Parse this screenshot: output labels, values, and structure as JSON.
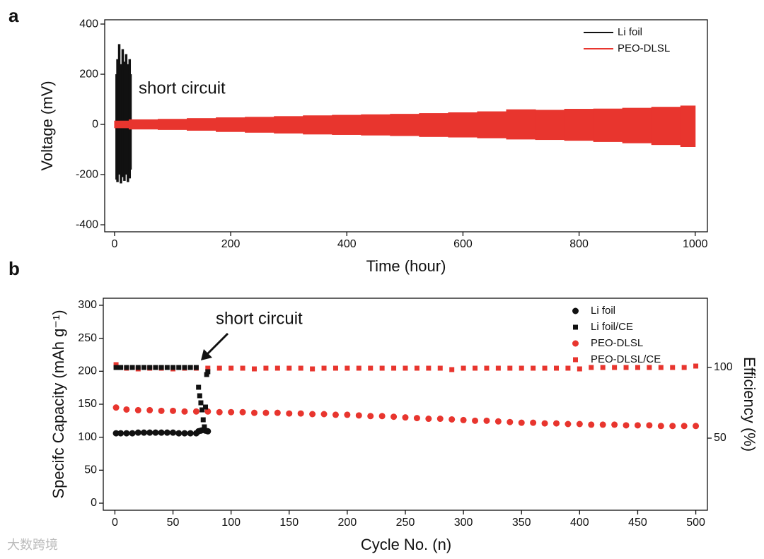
{
  "watermark": "大数跨境",
  "chart_data": [
    {
      "type": "area",
      "panel_label": "a",
      "xlabel": "Time (hour)",
      "ylabel": "Voltage (mV)",
      "annotation": "short circuit",
      "xlim": [
        -17,
        1021
      ],
      "ylim": [
        -428,
        417
      ],
      "xticks": [
        0,
        200,
        400,
        600,
        800,
        1000
      ],
      "yticks": [
        -400,
        -200,
        0,
        200,
        400
      ],
      "legend": "upper right",
      "series": [
        {
          "name": "Li foil",
          "color": "#111111",
          "x": [
            2,
            5,
            8,
            11,
            14,
            17,
            20,
            23,
            26,
            29
          ],
          "values": [
            200,
            260,
            320,
            240,
            300,
            250,
            280,
            240,
            260,
            200
          ],
          "lower": [
            -220,
            -230,
            -200,
            -235,
            -210,
            -225,
            -200,
            -230,
            -215,
            -180
          ]
        },
        {
          "name": "PEO-DLSL",
          "color": "#e8352e",
          "x": [
            0,
            50,
            100,
            150,
            200,
            250,
            300,
            350,
            400,
            450,
            500,
            550,
            600,
            650,
            700,
            750,
            800,
            850,
            900,
            950,
            1000
          ],
          "values": [
            15,
            20,
            22,
            25,
            28,
            30,
            33,
            36,
            38,
            40,
            42,
            45,
            48,
            52,
            60,
            58,
            62,
            63,
            66,
            70,
            75
          ],
          "lower": [
            -15,
            -20,
            -22,
            -25,
            -30,
            -33,
            -36,
            -40,
            -42,
            -44,
            -46,
            -50,
            -52,
            -55,
            -60,
            -62,
            -65,
            -70,
            -75,
            -82,
            -90
          ]
        }
      ]
    },
    {
      "type": "scatter",
      "panel_label": "b",
      "xlabel": "Cycle No. (n)",
      "ylabel": "Specifc Capacity (mAh g⁻¹)",
      "y2label": "Efficiency (%)",
      "annotation": "short circuit",
      "xlim": [
        -10,
        510
      ],
      "ylim": [
        -10.7,
        310.7
      ],
      "y2lim": [
        -1,
        149
      ],
      "xticks": [
        0,
        50,
        100,
        150,
        200,
        250,
        300,
        350,
        400,
        450,
        500
      ],
      "yticks": [
        0,
        50,
        100,
        150,
        200,
        250,
        300
      ],
      "y2ticks": [
        50,
        100
      ],
      "legend": "upper right",
      "series": [
        {
          "name": "Li foil",
          "color": "#111111",
          "marker": "circle",
          "x": [
            1,
            5,
            10,
            15,
            20,
            25,
            30,
            35,
            40,
            45,
            50,
            55,
            60,
            65,
            70,
            72,
            74,
            76,
            78,
            80
          ],
          "values": [
            106,
            106,
            106,
            106,
            107,
            107,
            107,
            107,
            107,
            107,
            107,
            106,
            106,
            106,
            106,
            109,
            110,
            111,
            110,
            109
          ]
        },
        {
          "name": "Li foil/CE",
          "color": "#111111",
          "marker": "square",
          "axis": "y2",
          "x": [
            1,
            5,
            10,
            15,
            20,
            25,
            30,
            35,
            40,
            45,
            50,
            55,
            60,
            65,
            70,
            72,
            73,
            74,
            75,
            76,
            77,
            78,
            79,
            80
          ],
          "values": [
            100,
            100,
            100,
            100,
            100,
            100,
            100,
            100,
            100,
            100,
            100,
            100,
            100,
            100,
            100,
            86,
            80,
            75,
            70,
            63,
            58,
            72,
            95,
            97
          ]
        },
        {
          "name": "PEO-DLSL",
          "color": "#e8352e",
          "marker": "circle",
          "x": [
            1,
            10,
            20,
            30,
            40,
            50,
            60,
            70,
            80,
            90,
            100,
            110,
            120,
            130,
            140,
            150,
            160,
            170,
            180,
            190,
            200,
            210,
            220,
            230,
            240,
            250,
            260,
            270,
            280,
            290,
            300,
            310,
            320,
            330,
            340,
            350,
            360,
            370,
            380,
            390,
            400,
            410,
            420,
            430,
            440,
            450,
            460,
            470,
            480,
            490,
            500
          ],
          "values": [
            145,
            142,
            141,
            141,
            140,
            140,
            139,
            139,
            139,
            138,
            138,
            138,
            137,
            137,
            137,
            136,
            136,
            135,
            135,
            134,
            134,
            133,
            132,
            132,
            131,
            130,
            129,
            128,
            128,
            127,
            126,
            125,
            125,
            124,
            123,
            122,
            122,
            121,
            121,
            120,
            120,
            119,
            119,
            119,
            118,
            118,
            118,
            117,
            117,
            117,
            117
          ]
        },
        {
          "name": "PEO-DLSL/CE",
          "color": "#e8352e",
          "marker": "square",
          "axis": "y2",
          "x": [
            1,
            10,
            20,
            30,
            40,
            50,
            60,
            70,
            80,
            90,
            100,
            110,
            120,
            130,
            140,
            150,
            160,
            170,
            180,
            190,
            200,
            210,
            220,
            230,
            240,
            250,
            260,
            270,
            280,
            290,
            300,
            310,
            320,
            330,
            340,
            350,
            360,
            370,
            380,
            390,
            400,
            410,
            420,
            430,
            440,
            450,
            460,
            470,
            480,
            490,
            500
          ],
          "values": [
            102,
            99.5,
            99,
            99.5,
            99.5,
            99,
            99.5,
            99.5,
            99.5,
            99.5,
            99.5,
            99.5,
            99,
            99.5,
            99.5,
            99.5,
            99.5,
            99,
            99.5,
            99.5,
            99.5,
            99.5,
            99.5,
            99.5,
            99.5,
            99.5,
            99.5,
            99.5,
            99.5,
            98.5,
            99.5,
            99.5,
            99.5,
            99.5,
            99.5,
            99.5,
            99.5,
            99.5,
            99.5,
            99.5,
            99,
            100,
            100,
            100,
            100,
            100,
            100,
            100,
            100,
            100,
            101
          ]
        }
      ]
    }
  ]
}
